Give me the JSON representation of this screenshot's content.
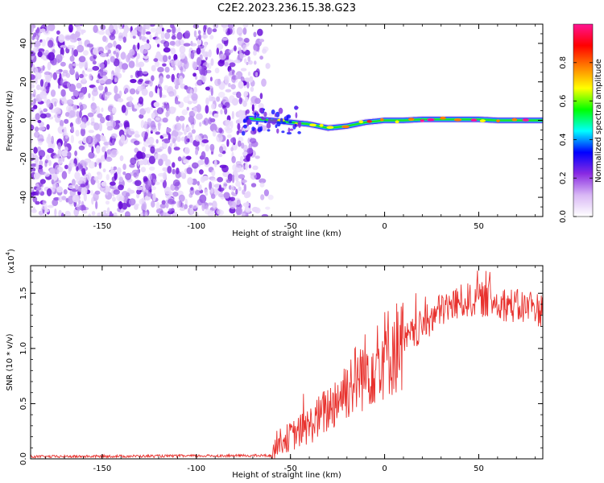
{
  "figure": {
    "title": "C2E2.2023.236.15.38.G23"
  },
  "chart_data": [
    {
      "type": "heatmap",
      "xlabel": "Height of straight line (km)",
      "ylabel": "Frequency (Hz)",
      "xlim": [
        -188,
        84
      ],
      "ylim": [
        -50,
        50
      ],
      "xticks": [
        -150,
        -100,
        -50,
        0,
        50
      ],
      "yticks": [
        -40,
        -20,
        0,
        20,
        40
      ],
      "colorbar": {
        "label": "Normalized spectral amplitude",
        "range": [
          0,
          1
        ],
        "ticks": [
          "0.0",
          "0.2",
          "0.4",
          "0.6",
          "0.8"
        ],
        "colors": [
          "#ffffff",
          "#d9b8f5",
          "#8a2be2",
          "#0000ff",
          "#00ffff",
          "#00ff00",
          "#ffff00",
          "#ff8000",
          "#ff0000",
          "#ff1493"
        ]
      },
      "noise_region_x": [
        -188,
        -60
      ],
      "signal_track": {
        "x": [
          -72,
          -60,
          -50,
          -40,
          -30,
          -20,
          -10,
          0,
          10,
          20,
          30,
          40,
          50,
          60,
          70,
          84
        ],
        "frequency": [
          1,
          0,
          -1,
          -2,
          -4,
          -3,
          -1,
          0,
          0,
          0.5,
          0.5,
          0.5,
          0.5,
          0,
          0,
          0
        ]
      },
      "grid": false
    },
    {
      "type": "line",
      "xlabel": "Height of straight line (km)",
      "ylabel": "SNR (10 * v/v)",
      "multiplier": "(x10",
      "multiplier_exp": "4",
      "multiplier_close": ")",
      "xlim": [
        -188,
        84
      ],
      "ylim": [
        0,
        1.75
      ],
      "xticks": [
        -150,
        -100,
        -50,
        0,
        50
      ],
      "yticks": [
        "0.0",
        "0.5",
        "1.0",
        "1.5"
      ],
      "series": [
        {
          "color": "#e8322e",
          "envelope_x": [
            -188,
            -60,
            -57,
            -50,
            -40,
            -30,
            -20,
            -10,
            0,
            10,
            20,
            30,
            40,
            50,
            60,
            70,
            84
          ],
          "envelope_y": [
            0.02,
            0.03,
            0.15,
            0.2,
            0.3,
            0.45,
            0.65,
            0.8,
            0.95,
            1.05,
            1.2,
            1.35,
            1.42,
            1.45,
            1.42,
            1.38,
            1.35
          ]
        }
      ],
      "grid": false
    }
  ]
}
